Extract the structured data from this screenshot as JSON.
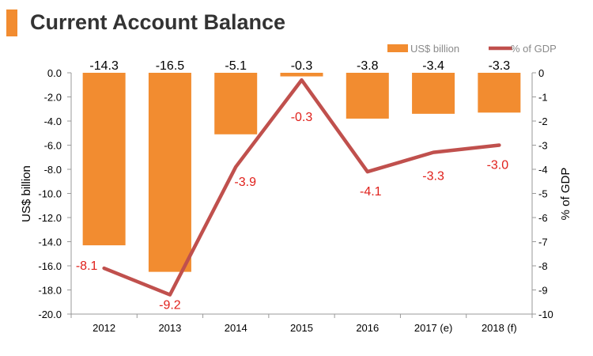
{
  "header": {
    "title": "Current Account Balance"
  },
  "colors": {
    "accent": "#f28c30",
    "bar": "#f28c30",
    "line": "#c0504d",
    "line_label": "#e0201b"
  },
  "chart_data": {
    "type": "bar",
    "title": "Current Account Balance",
    "categories": [
      "2012",
      "2013",
      "2014",
      "2015",
      "2016",
      "2017 (e)",
      "2018 (f)"
    ],
    "series": [
      {
        "name": "US$ billion",
        "type": "bar",
        "axis": "left",
        "values": [
          -14.3,
          -16.5,
          -5.1,
          -0.3,
          -3.8,
          -3.4,
          -3.3
        ],
        "labels": [
          "-14.3",
          "-16.5",
          "-5.1",
          "-0.3",
          "-3.8",
          "-3.4",
          "-3.3"
        ]
      },
      {
        "name": "% of GDP",
        "type": "line",
        "axis": "right",
        "values": [
          -8.1,
          -9.2,
          -3.9,
          -0.3,
          -4.1,
          -3.3,
          -3.0
        ],
        "labels": [
          "-8.1",
          "-9.2",
          "-3.9",
          "-0.3",
          "-4.1",
          "-3.3",
          "-3.0"
        ]
      }
    ],
    "y_left": {
      "label": "US$ billion",
      "range": [
        -20,
        0
      ],
      "ticks": [
        0,
        -2,
        -4,
        -6,
        -8,
        -10,
        -12,
        -14,
        -16,
        -18,
        -20
      ],
      "tick_labels": [
        "0.0",
        "-2.0",
        "-4.0",
        "-6.0",
        "-8.0",
        "-10.0",
        "-12.0",
        "-14.0",
        "-16.0",
        "-18.0",
        "-20.0"
      ]
    },
    "y_right": {
      "label": "% of GDP",
      "range": [
        -10,
        0
      ],
      "ticks": [
        0,
        -1,
        -2,
        -3,
        -4,
        -5,
        -6,
        -7,
        -8,
        -9,
        -10
      ],
      "tick_labels": [
        "0",
        "-1",
        "-2",
        "-3",
        "-4",
        "-5",
        "-6",
        "-7",
        "-8",
        "-9",
        "-10"
      ]
    },
    "grid": false,
    "legend": "top-right"
  }
}
